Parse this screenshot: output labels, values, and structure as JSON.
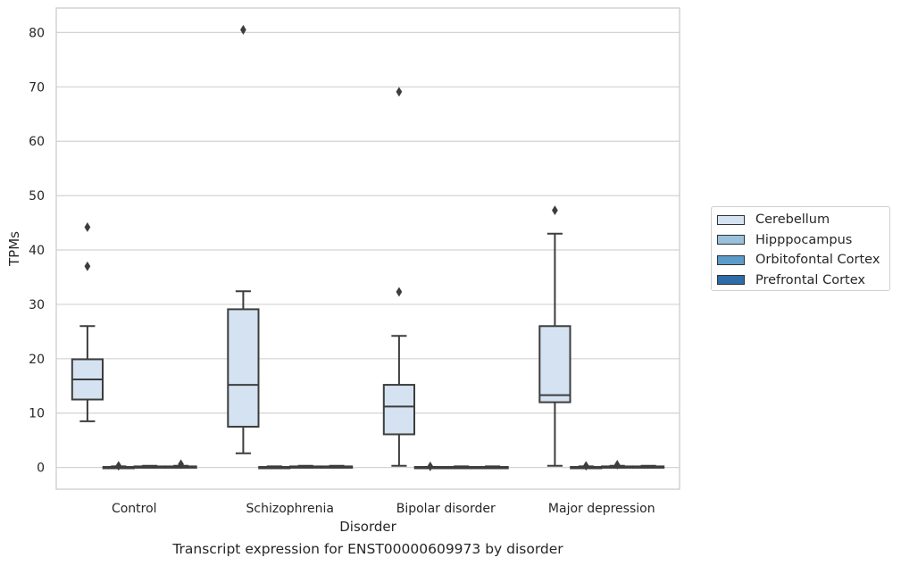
{
  "chart_data": {
    "type": "box",
    "xlabel": "Disorder",
    "ylabel": "TPMs",
    "caption": "Transcript expression for ENST00000609973 by disorder",
    "categories": [
      "Control",
      "Schizophrenia",
      "Bipolar disorder",
      "Major depression"
    ],
    "ylim": [
      -4,
      84.5
    ],
    "yticks": [
      0,
      10,
      20,
      30,
      40,
      50,
      60,
      70,
      80
    ],
    "grid": true,
    "legend_position": "right",
    "series": [
      {
        "name": "Cerebellum",
        "color": "#d4e2f1",
        "boxes": [
          {
            "whislo": 8.5,
            "q1": 12.5,
            "med": 16.2,
            "q3": 19.9,
            "whishi": 26.0,
            "fliers": [
              37.0,
              44.2
            ]
          },
          {
            "whislo": 2.6,
            "q1": 7.5,
            "med": 15.2,
            "q3": 29.1,
            "whishi": 32.4,
            "fliers": [
              80.5
            ]
          },
          {
            "whislo": 0.3,
            "q1": 6.1,
            "med": 11.2,
            "q3": 15.2,
            "whishi": 24.2,
            "fliers": [
              32.3,
              69.1
            ]
          },
          {
            "whislo": 0.3,
            "q1": 12.0,
            "med": 13.3,
            "q3": 26.0,
            "whishi": 43.0,
            "fliers": [
              47.3
            ]
          }
        ]
      },
      {
        "name": "Hipppocampus",
        "color": "#9ac1dc",
        "boxes": [
          {
            "whislo": 0,
            "q1": 0,
            "med": 0,
            "q3": 0.1,
            "whishi": 0.2,
            "fliers": [
              0.3
            ]
          },
          {
            "whislo": 0,
            "q1": 0,
            "med": 0,
            "q3": 0.1,
            "whishi": 0.2,
            "fliers": []
          },
          {
            "whislo": 0,
            "q1": 0,
            "med": 0,
            "q3": 0.1,
            "whishi": 0.1,
            "fliers": [
              0.2
            ]
          },
          {
            "whislo": 0,
            "q1": 0,
            "med": 0,
            "q3": 0.1,
            "whishi": 0.2,
            "fliers": [
              0.3
            ]
          }
        ]
      },
      {
        "name": "Orbitofontal Cortex",
        "color": "#5b9bc9",
        "boxes": [
          {
            "whislo": 0,
            "q1": 0,
            "med": 0.1,
            "q3": 0.2,
            "whishi": 0.3,
            "fliers": []
          },
          {
            "whislo": 0,
            "q1": 0,
            "med": 0.1,
            "q3": 0.2,
            "whishi": 0.3,
            "fliers": []
          },
          {
            "whislo": 0,
            "q1": 0,
            "med": 0,
            "q3": 0.1,
            "whishi": 0.2,
            "fliers": []
          },
          {
            "whislo": 0,
            "q1": 0,
            "med": 0.1,
            "q3": 0.2,
            "whishi": 0.3,
            "fliers": [
              0.5
            ]
          }
        ]
      },
      {
        "name": "Prefrontal Cortex",
        "color": "#2d6ca8",
        "boxes": [
          {
            "whislo": 0,
            "q1": 0,
            "med": 0.1,
            "q3": 0.2,
            "whishi": 0.3,
            "fliers": [
              0.6
            ]
          },
          {
            "whislo": 0,
            "q1": 0,
            "med": 0.1,
            "q3": 0.2,
            "whishi": 0.3,
            "fliers": []
          },
          {
            "whislo": 0,
            "q1": 0,
            "med": 0,
            "q3": 0.1,
            "whishi": 0.2,
            "fliers": []
          },
          {
            "whislo": 0,
            "q1": 0,
            "med": 0.1,
            "q3": 0.2,
            "whishi": 0.3,
            "fliers": []
          }
        ]
      }
    ]
  }
}
